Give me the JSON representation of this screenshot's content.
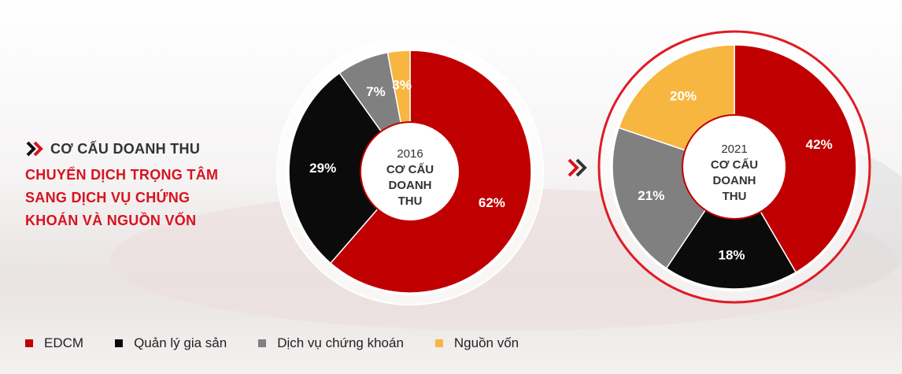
{
  "heading": {
    "kicker": "CƠ CẤU DOANH THU",
    "headline_lines": [
      "CHUYỂN DỊCH TRỌNG TÂM",
      "SANG DỊCH VỤ CHỨNG",
      "KHOÁN VÀ NGUỒN VỐN"
    ]
  },
  "colors": {
    "EDCM": "#c00000",
    "Quản lý gia sản": "#0b0b0b",
    "Dịch vụ chứng khoán": "#808080",
    "Nguồn vốn": "#f7b640",
    "accent": "#d7131f"
  },
  "icons": [
    "chevron-double-right-icon"
  ],
  "legend": [
    {
      "label": "EDCM",
      "color": "#c00000"
    },
    {
      "label": "Quản lý gia sản",
      "color": "#0b0b0b"
    },
    {
      "label": "Dịch vụ chứng khoán",
      "color": "#808080"
    },
    {
      "label": "Nguồn vốn",
      "color": "#f7b640"
    }
  ],
  "chart_data": [
    {
      "type": "pie",
      "year": "2016",
      "center_label": "CƠ CẤU DOANH THU",
      "center_lines": [
        "CƠ CẤU",
        "DOANH",
        "THU"
      ],
      "slices": [
        {
          "name": "EDCM",
          "value": 62,
          "label": "62%"
        },
        {
          "name": "Quản lý gia sản",
          "value": 29,
          "label": "29%"
        },
        {
          "name": "Dịch vụ chứng khoán",
          "value": 7,
          "label": "7%"
        },
        {
          "name": "Nguồn vốn",
          "value": 3,
          "label": "3%"
        }
      ]
    },
    {
      "type": "pie",
      "year": "2021",
      "center_label": "CƠ CẤU DOANH THU",
      "center_lines": [
        "CƠ CẤU",
        "DOANH",
        "THU"
      ],
      "slices": [
        {
          "name": "EDCM",
          "value": 42,
          "label": "42%"
        },
        {
          "name": "Quản lý gia sản",
          "value": 18,
          "label": "18%"
        },
        {
          "name": "Dịch vụ chứng khoán",
          "value": 21,
          "label": "21%"
        },
        {
          "name": "Nguồn vốn",
          "value": 20,
          "label": "20%"
        }
      ]
    }
  ]
}
